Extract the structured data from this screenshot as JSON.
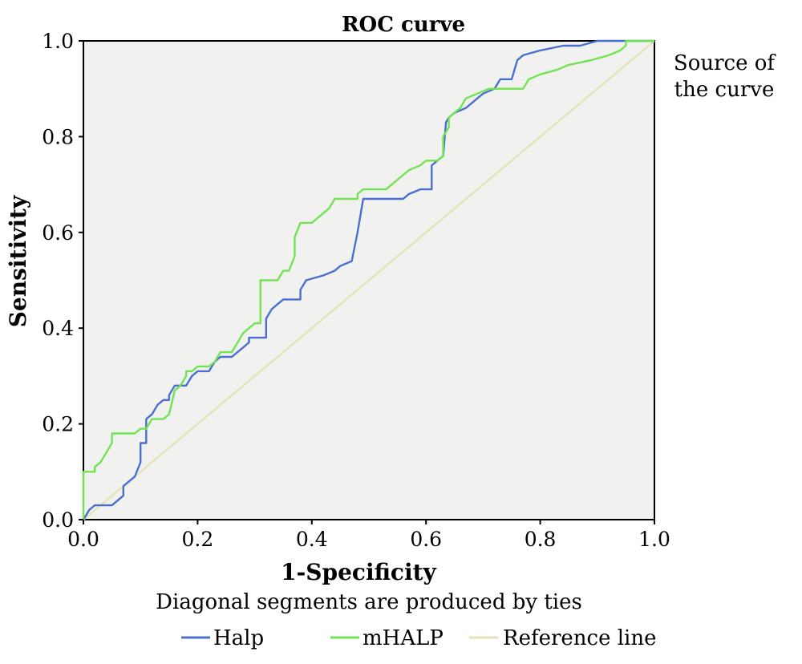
{
  "chart_data": {
    "type": "line",
    "title": "ROC curve",
    "xlabel": "1-Specificity",
    "ylabel": "Sensitivity",
    "xlim": [
      0,
      1
    ],
    "ylim": [
      0,
      1
    ],
    "xticks": [
      "0.0",
      "0.2",
      "0.4",
      "0.6",
      "0.8",
      "1.0"
    ],
    "yticks": [
      "0.0",
      "0.2",
      "0.4",
      "0.6",
      "0.8",
      "1.0"
    ],
    "legend_title": [
      "Source of",
      "the curve"
    ],
    "note": "Diagonal segments are produced by ties",
    "grid": false,
    "plot_background": "#f1f2f0",
    "series": [
      {
        "name": "Halp",
        "color": "#4a6fd0",
        "points": [
          [
            0,
            0
          ],
          [
            0.005,
            0.01
          ],
          [
            0.01,
            0.02
          ],
          [
            0.02,
            0.03
          ],
          [
            0.05,
            0.03
          ],
          [
            0.06,
            0.04
          ],
          [
            0.07,
            0.05
          ],
          [
            0.07,
            0.07
          ],
          [
            0.08,
            0.08
          ],
          [
            0.09,
            0.09
          ],
          [
            0.1,
            0.12
          ],
          [
            0.1,
            0.16
          ],
          [
            0.11,
            0.16
          ],
          [
            0.11,
            0.21
          ],
          [
            0.12,
            0.22
          ],
          [
            0.13,
            0.24
          ],
          [
            0.14,
            0.25
          ],
          [
            0.15,
            0.25
          ],
          [
            0.15,
            0.26
          ],
          [
            0.16,
            0.28
          ],
          [
            0.18,
            0.28
          ],
          [
            0.19,
            0.3
          ],
          [
            0.2,
            0.31
          ],
          [
            0.22,
            0.31
          ],
          [
            0.23,
            0.33
          ],
          [
            0.24,
            0.34
          ],
          [
            0.26,
            0.34
          ],
          [
            0.27,
            0.35
          ],
          [
            0.28,
            0.36
          ],
          [
            0.29,
            0.37
          ],
          [
            0.29,
            0.38
          ],
          [
            0.32,
            0.38
          ],
          [
            0.32,
            0.42
          ],
          [
            0.33,
            0.44
          ],
          [
            0.34,
            0.45
          ],
          [
            0.35,
            0.46
          ],
          [
            0.38,
            0.46
          ],
          [
            0.38,
            0.48
          ],
          [
            0.39,
            0.5
          ],
          [
            0.42,
            0.51
          ],
          [
            0.44,
            0.52
          ],
          [
            0.45,
            0.53
          ],
          [
            0.47,
            0.54
          ],
          [
            0.48,
            0.6
          ],
          [
            0.49,
            0.67
          ],
          [
            0.56,
            0.67
          ],
          [
            0.57,
            0.68
          ],
          [
            0.59,
            0.69
          ],
          [
            0.61,
            0.69
          ],
          [
            0.61,
            0.74
          ],
          [
            0.62,
            0.75
          ],
          [
            0.63,
            0.76
          ],
          [
            0.635,
            0.83
          ],
          [
            0.64,
            0.84
          ],
          [
            0.65,
            0.85
          ],
          [
            0.67,
            0.86
          ],
          [
            0.68,
            0.87
          ],
          [
            0.69,
            0.88
          ],
          [
            0.7,
            0.89
          ],
          [
            0.72,
            0.9
          ],
          [
            0.73,
            0.92
          ],
          [
            0.75,
            0.92
          ],
          [
            0.76,
            0.96
          ],
          [
            0.77,
            0.97
          ],
          [
            0.8,
            0.98
          ],
          [
            0.84,
            0.99
          ],
          [
            0.87,
            0.99
          ],
          [
            0.9,
            1.0
          ],
          [
            0.95,
            1.0
          ],
          [
            1.0,
            1.0
          ]
        ]
      },
      {
        "name": "mHALP",
        "color": "#72e352",
        "points": [
          [
            0,
            0
          ],
          [
            0,
            0.1
          ],
          [
            0.02,
            0.1
          ],
          [
            0.02,
            0.11
          ],
          [
            0.03,
            0.12
          ],
          [
            0.04,
            0.14
          ],
          [
            0.05,
            0.16
          ],
          [
            0.05,
            0.18
          ],
          [
            0.07,
            0.18
          ],
          [
            0.09,
            0.18
          ],
          [
            0.1,
            0.19
          ],
          [
            0.11,
            0.19
          ],
          [
            0.12,
            0.21
          ],
          [
            0.14,
            0.21
          ],
          [
            0.15,
            0.22
          ],
          [
            0.16,
            0.27
          ],
          [
            0.17,
            0.28
          ],
          [
            0.18,
            0.3
          ],
          [
            0.18,
            0.31
          ],
          [
            0.19,
            0.31
          ],
          [
            0.2,
            0.32
          ],
          [
            0.22,
            0.32
          ],
          [
            0.23,
            0.33
          ],
          [
            0.24,
            0.35
          ],
          [
            0.26,
            0.35
          ],
          [
            0.27,
            0.37
          ],
          [
            0.28,
            0.39
          ],
          [
            0.29,
            0.4
          ],
          [
            0.3,
            0.41
          ],
          [
            0.31,
            0.41
          ],
          [
            0.31,
            0.5
          ],
          [
            0.34,
            0.5
          ],
          [
            0.35,
            0.52
          ],
          [
            0.36,
            0.52
          ],
          [
            0.37,
            0.55
          ],
          [
            0.37,
            0.59
          ],
          [
            0.38,
            0.62
          ],
          [
            0.4,
            0.62
          ],
          [
            0.41,
            0.63
          ],
          [
            0.42,
            0.64
          ],
          [
            0.43,
            0.65
          ],
          [
            0.44,
            0.67
          ],
          [
            0.48,
            0.67
          ],
          [
            0.48,
            0.68
          ],
          [
            0.49,
            0.69
          ],
          [
            0.53,
            0.69
          ],
          [
            0.54,
            0.7
          ],
          [
            0.56,
            0.72
          ],
          [
            0.57,
            0.73
          ],
          [
            0.59,
            0.74
          ],
          [
            0.6,
            0.75
          ],
          [
            0.62,
            0.75
          ],
          [
            0.63,
            0.76
          ],
          [
            0.63,
            0.8
          ],
          [
            0.64,
            0.82
          ],
          [
            0.64,
            0.84
          ],
          [
            0.65,
            0.85
          ],
          [
            0.66,
            0.86
          ],
          [
            0.67,
            0.88
          ],
          [
            0.69,
            0.89
          ],
          [
            0.71,
            0.9
          ],
          [
            0.77,
            0.9
          ],
          [
            0.78,
            0.92
          ],
          [
            0.8,
            0.93
          ],
          [
            0.83,
            0.94
          ],
          [
            0.85,
            0.95
          ],
          [
            0.89,
            0.96
          ],
          [
            0.92,
            0.97
          ],
          [
            0.94,
            0.98
          ],
          [
            0.95,
            0.99
          ],
          [
            0.95,
            1.0
          ],
          [
            1.0,
            1.0
          ]
        ]
      },
      {
        "name": "Reference line",
        "color": "#e6e2b8",
        "points": [
          [
            0,
            0
          ],
          [
            1,
            1
          ]
        ]
      }
    ]
  }
}
